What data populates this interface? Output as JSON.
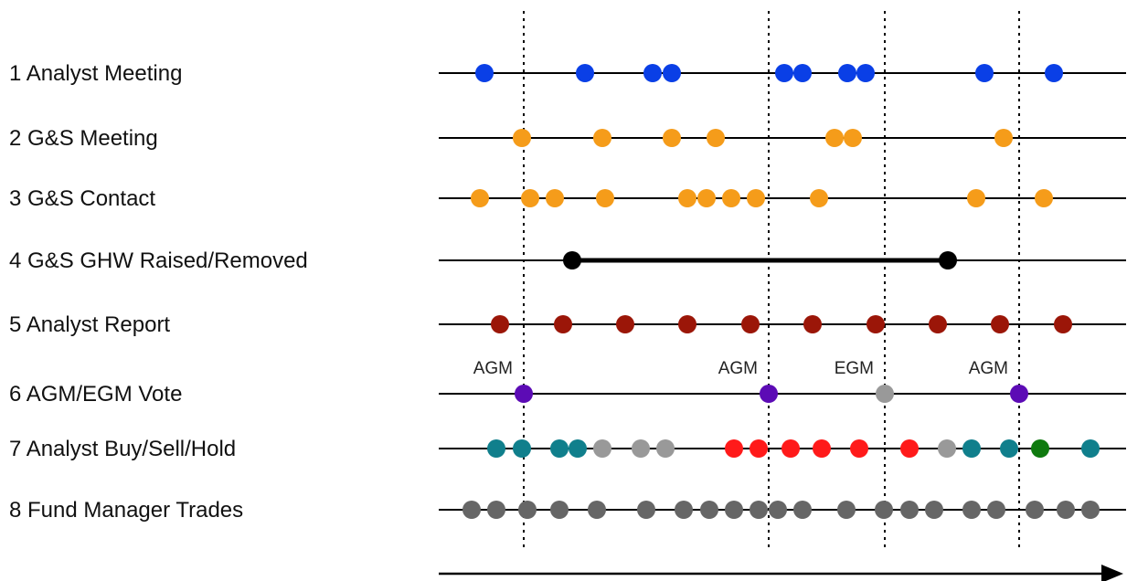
{
  "colors": {
    "meeting_blue": "#0a3fe6",
    "gs_orange": "#f59c1a",
    "report_red": "#9b1608",
    "vote_purple": "#5c0bb5",
    "neutral_gray": "#999999",
    "fund_gray": "#666666",
    "buy_teal": "#107f8c",
    "sell_red": "#ff1a1a",
    "buy_green": "#0f7a0f",
    "ghw_black": "#000000",
    "line_black": "#000000"
  },
  "rows": [
    {
      "label": "1 Analyst Meeting",
      "events": [
        {
          "x": 530,
          "color": "meeting_blue"
        },
        {
          "x": 640,
          "color": "meeting_blue"
        },
        {
          "x": 714,
          "color": "meeting_blue"
        },
        {
          "x": 735,
          "color": "meeting_blue"
        },
        {
          "x": 858,
          "color": "meeting_blue"
        },
        {
          "x": 878,
          "color": "meeting_blue"
        },
        {
          "x": 927,
          "color": "meeting_blue"
        },
        {
          "x": 947,
          "color": "meeting_blue"
        },
        {
          "x": 1077,
          "color": "meeting_blue"
        },
        {
          "x": 1153,
          "color": "meeting_blue"
        }
      ]
    },
    {
      "label": "2 G&S Meeting",
      "events": [
        {
          "x": 571,
          "color": "gs_orange"
        },
        {
          "x": 659,
          "color": "gs_orange"
        },
        {
          "x": 735,
          "color": "gs_orange"
        },
        {
          "x": 783,
          "color": "gs_orange"
        },
        {
          "x": 913,
          "color": "gs_orange"
        },
        {
          "x": 933,
          "color": "gs_orange"
        },
        {
          "x": 1098,
          "color": "gs_orange"
        }
      ]
    },
    {
      "label": "3 G&S Contact",
      "events": [
        {
          "x": 525,
          "color": "gs_orange"
        },
        {
          "x": 580,
          "color": "gs_orange"
        },
        {
          "x": 607,
          "color": "gs_orange"
        },
        {
          "x": 662,
          "color": "gs_orange"
        },
        {
          "x": 752,
          "color": "gs_orange"
        },
        {
          "x": 773,
          "color": "gs_orange"
        },
        {
          "x": 800,
          "color": "gs_orange"
        },
        {
          "x": 827,
          "color": "gs_orange"
        },
        {
          "x": 896,
          "color": "gs_orange"
        },
        {
          "x": 1068,
          "color": "gs_orange"
        },
        {
          "x": 1142,
          "color": "gs_orange"
        }
      ]
    },
    {
      "label": "4 G&S GHW Raised/Removed",
      "span": {
        "from": 626,
        "to": 1037,
        "color": "ghw_black"
      },
      "events": [
        {
          "x": 626,
          "color": "ghw_black"
        },
        {
          "x": 1037,
          "color": "ghw_black"
        }
      ]
    },
    {
      "label": "5 Analyst Report",
      "events": [
        {
          "x": 547,
          "color": "report_red"
        },
        {
          "x": 616,
          "color": "report_red"
        },
        {
          "x": 684,
          "color": "report_red"
        },
        {
          "x": 752,
          "color": "report_red"
        },
        {
          "x": 821,
          "color": "report_red"
        },
        {
          "x": 889,
          "color": "report_red"
        },
        {
          "x": 958,
          "color": "report_red"
        },
        {
          "x": 1026,
          "color": "report_red"
        },
        {
          "x": 1094,
          "color": "report_red"
        },
        {
          "x": 1163,
          "color": "report_red"
        }
      ]
    },
    {
      "label": "6 AGM/EGM Vote",
      "events": [
        {
          "x": 573,
          "color": "vote_purple",
          "tag": "AGM"
        },
        {
          "x": 841,
          "color": "vote_purple",
          "tag": "AGM"
        },
        {
          "x": 968,
          "color": "neutral_gray",
          "tag": "EGM"
        },
        {
          "x": 1115,
          "color": "vote_purple",
          "tag": "AGM"
        }
      ]
    },
    {
      "label": "7 Analyst Buy/Sell/Hold",
      "events": [
        {
          "x": 543,
          "color": "buy_teal"
        },
        {
          "x": 571,
          "color": "buy_teal"
        },
        {
          "x": 612,
          "color": "buy_teal"
        },
        {
          "x": 632,
          "color": "buy_teal"
        },
        {
          "x": 659,
          "color": "neutral_gray"
        },
        {
          "x": 701,
          "color": "neutral_gray"
        },
        {
          "x": 728,
          "color": "neutral_gray"
        },
        {
          "x": 803,
          "color": "sell_red"
        },
        {
          "x": 830,
          "color": "sell_red"
        },
        {
          "x": 865,
          "color": "sell_red"
        },
        {
          "x": 899,
          "color": "sell_red"
        },
        {
          "x": 940,
          "color": "sell_red"
        },
        {
          "x": 995,
          "color": "sell_red"
        },
        {
          "x": 1036,
          "color": "neutral_gray"
        },
        {
          "x": 1063,
          "color": "buy_teal"
        },
        {
          "x": 1104,
          "color": "buy_teal"
        },
        {
          "x": 1138,
          "color": "buy_green"
        },
        {
          "x": 1193,
          "color": "buy_teal"
        }
      ]
    },
    {
      "label": "8 Fund Manager Trades",
      "events": [
        {
          "x": 516,
          "color": "fund_gray"
        },
        {
          "x": 543,
          "color": "fund_gray"
        },
        {
          "x": 577,
          "color": "fund_gray"
        },
        {
          "x": 612,
          "color": "fund_gray"
        },
        {
          "x": 653,
          "color": "fund_gray"
        },
        {
          "x": 707,
          "color": "fund_gray"
        },
        {
          "x": 748,
          "color": "fund_gray"
        },
        {
          "x": 776,
          "color": "fund_gray"
        },
        {
          "x": 803,
          "color": "fund_gray"
        },
        {
          "x": 830,
          "color": "fund_gray"
        },
        {
          "x": 851,
          "color": "fund_gray"
        },
        {
          "x": 878,
          "color": "fund_gray"
        },
        {
          "x": 926,
          "color": "fund_gray"
        },
        {
          "x": 967,
          "color": "fund_gray"
        },
        {
          "x": 995,
          "color": "fund_gray"
        },
        {
          "x": 1022,
          "color": "fund_gray"
        },
        {
          "x": 1063,
          "color": "fund_gray"
        },
        {
          "x": 1090,
          "color": "fund_gray"
        },
        {
          "x": 1132,
          "color": "fund_gray"
        },
        {
          "x": 1166,
          "color": "fund_gray"
        },
        {
          "x": 1193,
          "color": "fund_gray"
        }
      ]
    }
  ],
  "vote_markers": [
    573,
    841,
    968,
    1115
  ]
}
